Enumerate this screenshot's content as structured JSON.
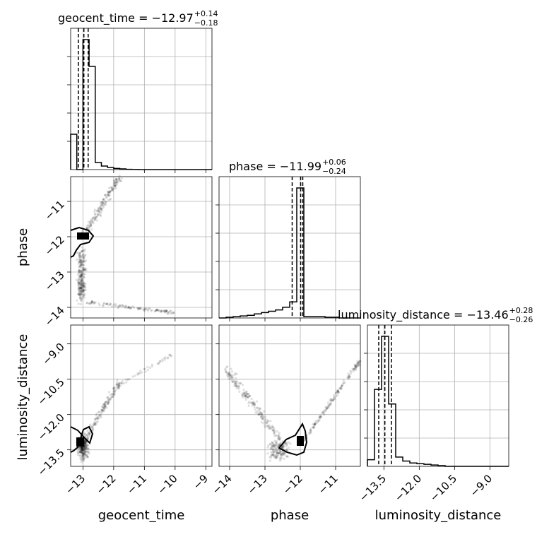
{
  "chart_data": {
    "type": "corner",
    "parameters": [
      "geocent_time",
      "phase",
      "luminosity_distance"
    ],
    "axis_labels": {
      "geocent_time": "geocent_time",
      "phase": "phase",
      "luminosity_distance": "luminosity_distance"
    },
    "titles": [
      {
        "param": "geocent_time",
        "text": "geocent_time = −12.97",
        "upper": "+0.14",
        "lower": "−0.18",
        "median": -12.97,
        "plus": 0.14,
        "minus": 0.18
      },
      {
        "param": "phase",
        "text": "phase = −11.99",
        "upper": "+0.06",
        "lower": "−0.24",
        "median": -11.99,
        "plus": 0.06,
        "minus": 0.24
      },
      {
        "param": "luminosity_distance",
        "text": "luminosity_distance = −13.46",
        "upper": "+0.28",
        "lower": "−0.26",
        "median": -13.46,
        "plus": 0.28,
        "minus": 0.26
      }
    ],
    "ranges": {
      "geocent_time": [
        -13.4,
        -8.8
      ],
      "phase": [
        -14.3,
        -10.3
      ],
      "luminosity_distance": [
        -14.2,
        -8.2
      ]
    },
    "ticks": {
      "geocent_time": {
        "values": [
          -13,
          -12,
          -11,
          -10,
          -9
        ],
        "labels": [
          "−13",
          "−12",
          "−11",
          "−10",
          "−9"
        ]
      },
      "phase_x": {
        "values": [
          -14,
          -13,
          -12,
          -11
        ],
        "labels": [
          "−14",
          "−13",
          "−12",
          "−11"
        ]
      },
      "phase_y": {
        "values": [
          -11,
          -12,
          -13,
          -14
        ],
        "labels": [
          "−11",
          "−12",
          "−13",
          "−14"
        ]
      },
      "luminosity_distance": {
        "values": [
          -9.0,
          -10.5,
          -12.0,
          -13.5
        ],
        "labels": [
          "−9.0",
          "−10.5",
          "−12.0",
          "−13.5"
        ]
      },
      "luminosity_distance_x": {
        "values": [
          -13.5,
          -12.0,
          -10.5,
          -9.0
        ],
        "labels": [
          "−13.5",
          "−12.0",
          "−10.5",
          "−9.0"
        ]
      }
    },
    "histograms": {
      "geocent_time": {
        "bin_edges": [
          -13.4,
          -13.2,
          -13.0,
          -12.8,
          -12.6,
          -12.4,
          -12.2,
          -12.0,
          -11.8,
          -11.6,
          -11.4,
          -11.2,
          -11.0,
          -10.8,
          -10.6,
          -10.4,
          -10.2,
          -10.0,
          -9.8,
          -9.6,
          -9.4,
          -9.2,
          -9.0,
          -8.8
        ],
        "counts": [
          0.25,
          0.0,
          0.92,
          0.73,
          0.05,
          0.025,
          0.015,
          0.008,
          0.005,
          0.002,
          0.001,
          0.0,
          0.0,
          0.0,
          0.0,
          0.0,
          0.0,
          0.0,
          0.0,
          0.0,
          0.0,
          0.0,
          0.0
        ],
        "quantiles": [
          -13.15,
          -12.97,
          -12.83
        ]
      },
      "phase": {
        "bin_edges": [
          -14.3,
          -14.1,
          -13.9,
          -13.7,
          -13.5,
          -13.3,
          -13.1,
          -12.9,
          -12.7,
          -12.5,
          -12.3,
          -12.1,
          -11.9,
          -11.7,
          -11.5,
          -11.3,
          -11.1,
          -10.9,
          -10.7,
          -10.5,
          -10.3
        ],
        "counts": [
          0.0,
          0.005,
          0.01,
          0.015,
          0.02,
          0.03,
          0.04,
          0.05,
          0.06,
          0.08,
          0.12,
          0.97,
          0.01,
          0.01,
          0.01,
          0.005,
          0.005,
          0.0,
          0.0,
          0.0
        ],
        "quantiles": [
          -12.23,
          -11.99,
          -11.93
        ]
      },
      "luminosity_distance": {
        "bin_edges": [
          -14.2,
          -13.9,
          -13.6,
          -13.3,
          -13.0,
          -12.7,
          -12.4,
          -12.1,
          -11.8,
          -11.5,
          -11.2,
          -10.9,
          -10.6,
          -10.3,
          -10.0,
          -9.7,
          -9.4,
          -9.1,
          -8.8,
          -8.5,
          -8.2
        ],
        "counts": [
          0.05,
          0.58,
          0.98,
          0.47,
          0.07,
          0.04,
          0.025,
          0.02,
          0.015,
          0.01,
          0.005,
          0.0,
          0.0,
          0.0,
          0.0,
          0.0,
          0.0,
          0.0,
          0.0,
          0.0
        ],
        "quantiles": [
          -13.72,
          -13.46,
          -13.18
        ]
      }
    },
    "grid": true
  }
}
